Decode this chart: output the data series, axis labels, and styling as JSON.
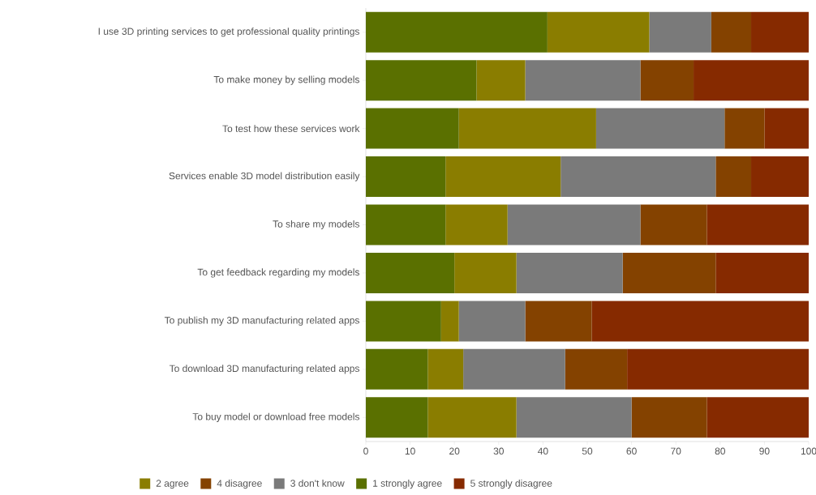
{
  "chart_data": {
    "type": "bar",
    "orientation": "horizontal",
    "stacked": true,
    "categories": [
      "I use 3D printing services to get professional quality printings",
      "To make money by selling models",
      "To test how these services work",
      "Services enable 3D model distribution easily",
      "To share my models",
      "To get feedback regarding my models",
      "To publish my 3D manufacturing related apps",
      "To download 3D manufacturing related apps",
      "To buy model or download free models"
    ],
    "series": [
      {
        "name": "1 strongly agree",
        "color": "#5a7000",
        "values": [
          41,
          25,
          21,
          18,
          18,
          20,
          17,
          14,
          14
        ]
      },
      {
        "name": "2 agree",
        "color": "#8a7d00",
        "values": [
          23,
          11,
          31,
          26,
          14,
          14,
          4,
          8,
          20
        ]
      },
      {
        "name": "3 don't know",
        "color": "#7a7a7a",
        "values": [
          14,
          26,
          29,
          35,
          30,
          24,
          15,
          23,
          26
        ]
      },
      {
        "name": "4 disagree",
        "color": "#844200",
        "values": [
          9,
          12,
          9,
          8,
          15,
          21,
          15,
          14,
          17
        ]
      },
      {
        "name": "5 strongly disagree",
        "color": "#862a00",
        "values": [
          13,
          26,
          10,
          13,
          23,
          21,
          49,
          41,
          23
        ]
      }
    ],
    "xlim": [
      0,
      100
    ],
    "xticks": [
      0,
      10,
      20,
      30,
      40,
      50,
      60,
      70,
      80,
      90,
      100
    ],
    "grid": false,
    "legend": "bottom"
  }
}
